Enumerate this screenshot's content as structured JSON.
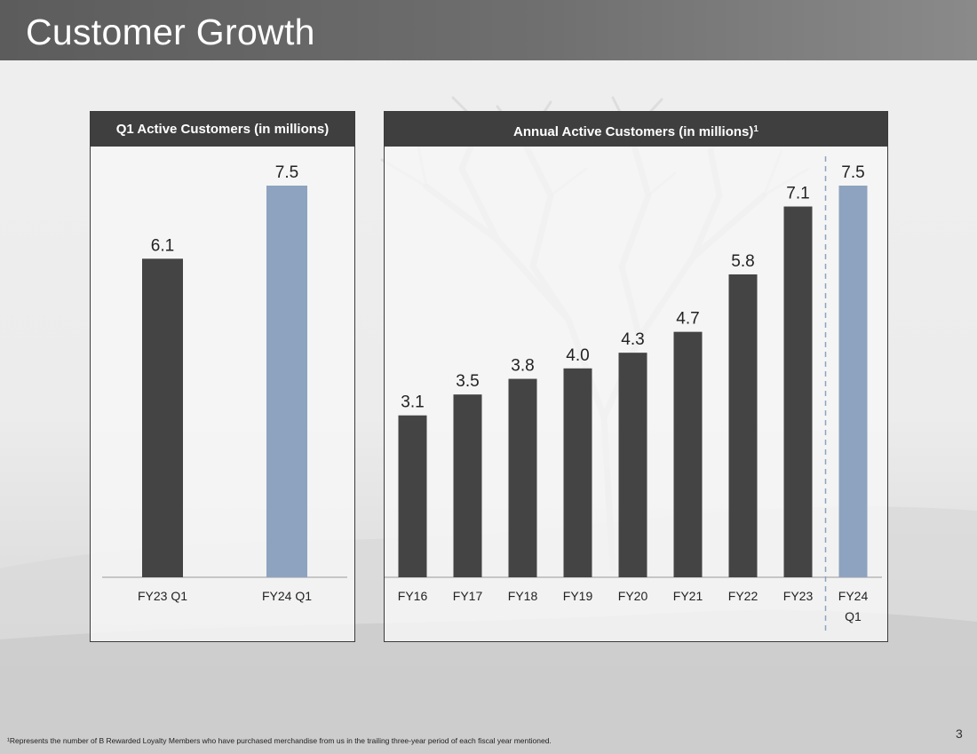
{
  "slide": {
    "title": "Customer Growth",
    "footnote": "¹Represents the number of B Rewarded Loyalty Members who have purchased merchandise from us in the trailing three-year period of each fiscal year mentioned.",
    "page_number": "3"
  },
  "chart_data": [
    {
      "type": "bar",
      "title": "Q1 Active Customers (in millions)",
      "categories": [
        "FY23 Q1",
        "FY24 Q1"
      ],
      "values": [
        6.1,
        7.5
      ],
      "value_labels": [
        "6.1",
        "7.5"
      ],
      "bar_colors": [
        "#444444",
        "#8ea3bf"
      ],
      "xlabel": "",
      "ylabel": "",
      "ylim": [
        0,
        7.5
      ],
      "grid": false
    },
    {
      "type": "bar",
      "title": "Annual Active Customers (in millions)",
      "title_superscript": "1",
      "categories": [
        "FY16",
        "FY17",
        "FY18",
        "FY19",
        "FY20",
        "FY21",
        "FY22",
        "FY23",
        "FY24\nQ1"
      ],
      "values": [
        3.1,
        3.5,
        3.8,
        4.0,
        4.3,
        4.7,
        5.8,
        7.1,
        7.5
      ],
      "value_labels": [
        "3.1",
        "3.5",
        "3.8",
        "4.0",
        "4.3",
        "4.7",
        "5.8",
        "7.1",
        "7.5"
      ],
      "bar_colors": [
        "#444444",
        "#444444",
        "#444444",
        "#444444",
        "#444444",
        "#444444",
        "#444444",
        "#444444",
        "#8ea3bf"
      ],
      "separator_before_index": 8,
      "xlabel": "",
      "ylabel": "",
      "ylim": [
        0,
        7.5
      ],
      "grid": false
    }
  ]
}
